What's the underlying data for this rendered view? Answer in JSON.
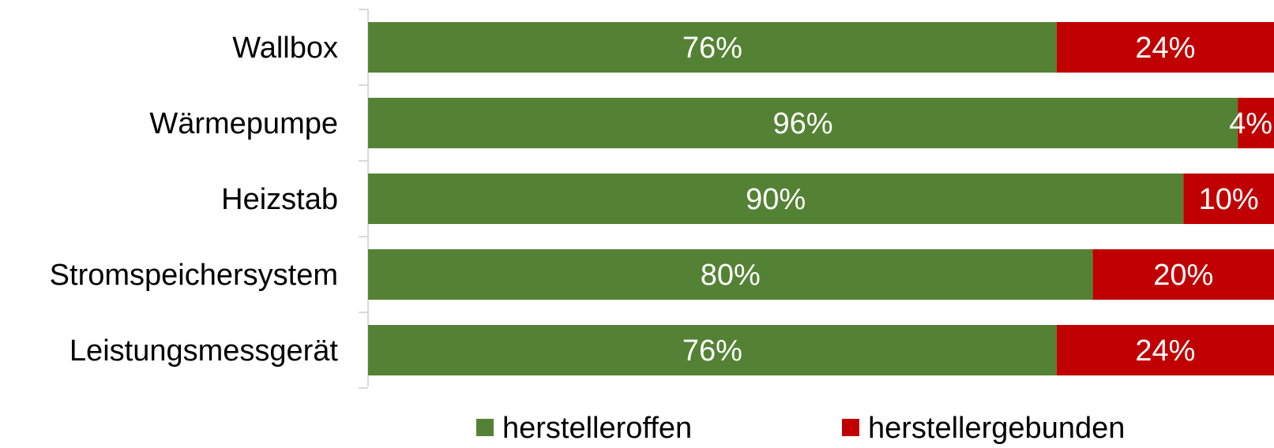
{
  "chart_data": {
    "type": "bar",
    "orientation": "horizontal",
    "stacked": "percent",
    "categories": [
      "Wallbox",
      "Wärmepumpe",
      "Heizstab",
      "Stromspeichersystem",
      "Leistungsmessgerät"
    ],
    "series": [
      {
        "name": "herstelleroffen",
        "color": "#548235",
        "values": [
          76,
          96,
          90,
          80,
          76
        ],
        "labels": [
          "76%",
          "96%",
          "90%",
          "80%",
          "76%"
        ]
      },
      {
        "name": "herstellergebunden",
        "color": "#c00000",
        "values": [
          24,
          4,
          10,
          20,
          24
        ],
        "labels": [
          "24%",
          "4%",
          "10%",
          "20%",
          "24%"
        ]
      }
    ],
    "xlim": [
      0,
      100
    ],
    "grid": false,
    "legend": "bottom",
    "title": "",
    "xlabel": "",
    "ylabel": ""
  }
}
